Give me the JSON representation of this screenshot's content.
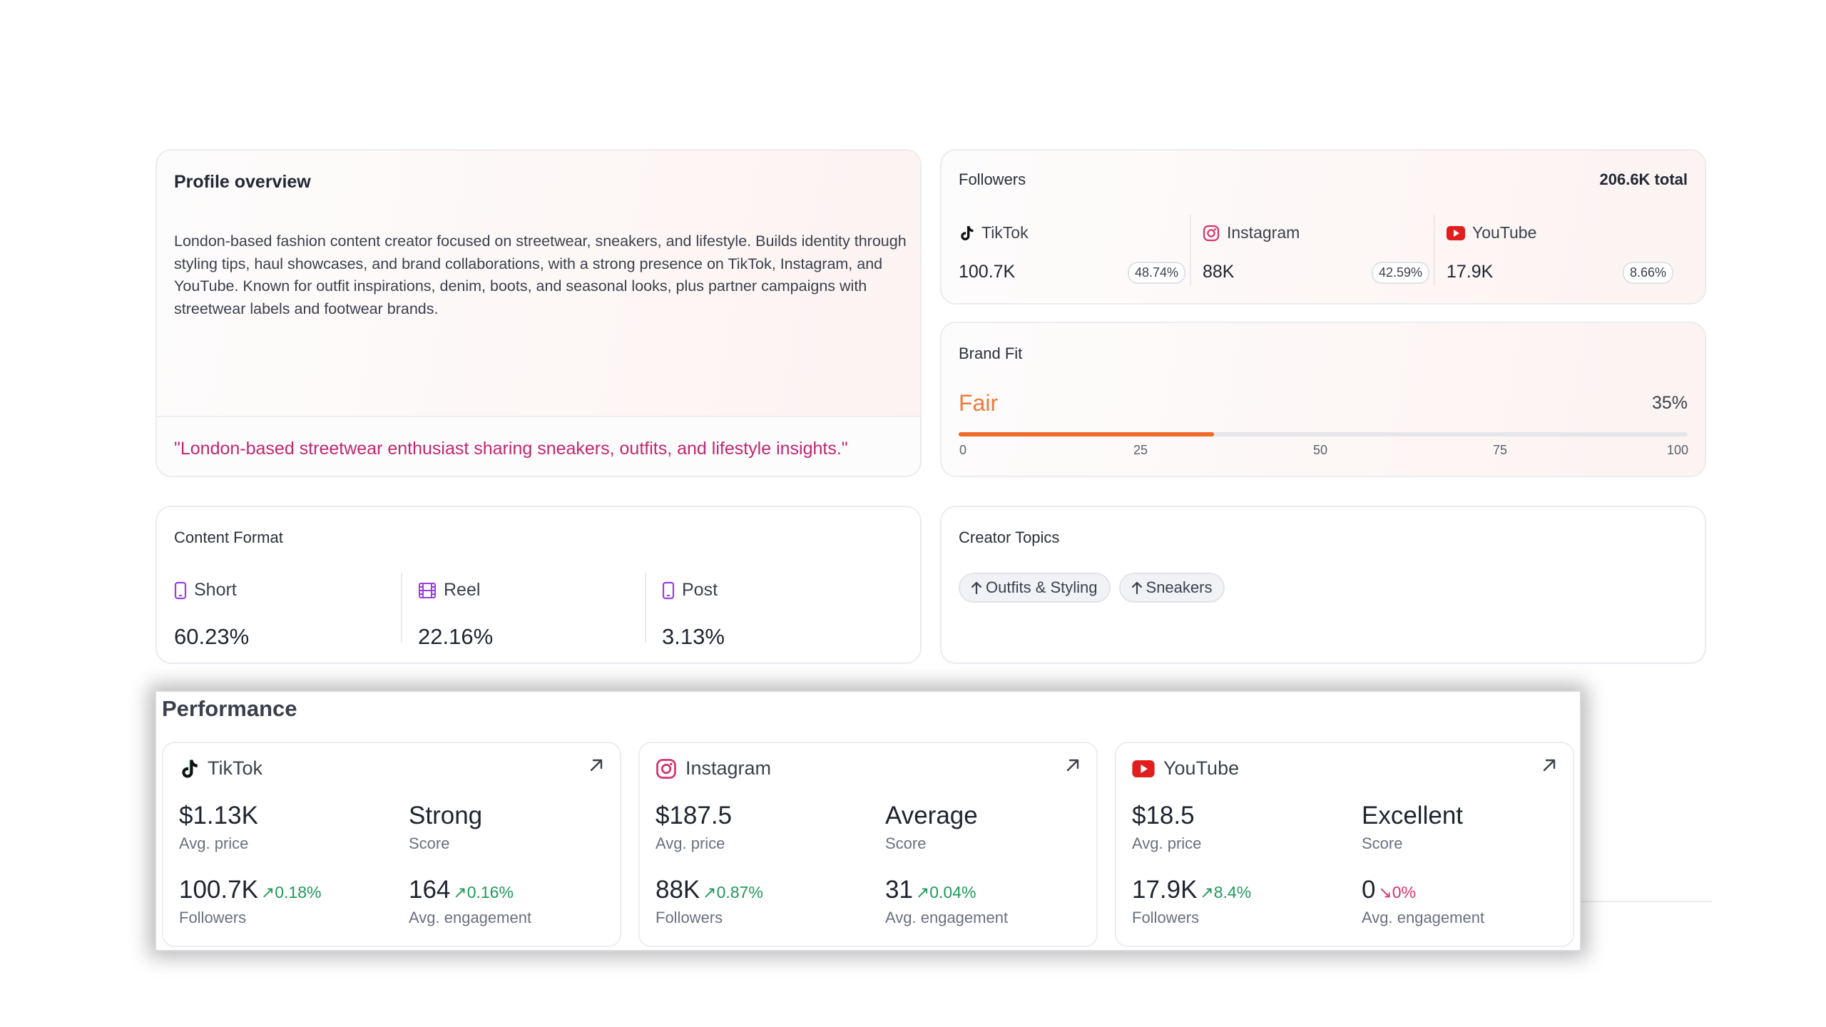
{
  "profile": {
    "title": "Profile overview",
    "bio": "London-based fashion content creator focused on streetwear, sneakers, and lifestyle. Builds identity through styling tips, haul showcases, and brand collaborations, with a strong presence on TikTok, Instagram, and YouTube. Known for outfit inspirations, denim, boots, and seasonal looks, plus partner campaigns with streetwear labels and footwear brands.",
    "quote": "\"London-based streetwear enthusiast sharing sneakers, outfits, and lifestyle insights.\""
  },
  "followers": {
    "title": "Followers",
    "total": "206.6K total",
    "platforms": [
      {
        "name": "TikTok",
        "icon": "tiktok-icon",
        "value": "100.7K",
        "pct": "48.74%"
      },
      {
        "name": "Instagram",
        "icon": "instagram-icon",
        "value": "88K",
        "pct": "42.59%"
      },
      {
        "name": "YouTube",
        "icon": "youtube-icon",
        "value": "17.9K",
        "pct": "8.66%"
      }
    ]
  },
  "brand_fit": {
    "title": "Brand Fit",
    "level": "Fair",
    "percent_label": "35%",
    "percent": 35,
    "ticks": [
      "0",
      "25",
      "50",
      "75",
      "100"
    ],
    "accent": "#f07a3a"
  },
  "content_format": {
    "title": "Content Format",
    "items": [
      {
        "name": "Short",
        "icon": "phone-icon",
        "value": "60.23%"
      },
      {
        "name": "Reel",
        "icon": "film-icon",
        "value": "22.16%"
      },
      {
        "name": "Post",
        "icon": "phone-icon",
        "value": "3.13%"
      }
    ]
  },
  "creator_topics": {
    "title": "Creator Topics",
    "topics": [
      "Outfits & Styling",
      "Sneakers"
    ]
  },
  "performance": {
    "title": "Performance",
    "cards": [
      {
        "platform": "TikTok",
        "icon": "tiktok-icon",
        "price": "$1.13K",
        "price_label": "Avg. price",
        "score": "Strong",
        "score_label": "Score",
        "followers": "100.7K",
        "followers_delta": "0.18%",
        "followers_label": "Followers",
        "engagement": "164",
        "engagement_delta": "0.16%",
        "engagement_label": "Avg. engagement"
      },
      {
        "platform": "Instagram",
        "icon": "instagram-icon",
        "price": "$187.5",
        "price_label": "Avg. price",
        "score": "Average",
        "score_label": "Score",
        "followers": "88K",
        "followers_delta": "0.87%",
        "followers_label": "Followers",
        "engagement": "31",
        "engagement_delta": "0.04%",
        "engagement_label": "Avg. engagement"
      },
      {
        "platform": "YouTube",
        "icon": "youtube-icon",
        "price": "$18.5",
        "price_label": "Avg. price",
        "score": "Excellent",
        "score_label": "Score",
        "followers": "17.9K",
        "followers_delta": "8.4%",
        "followers_label": "Followers",
        "engagement": "0",
        "engagement_delta": "0%",
        "engagement_label": "Avg. engagement"
      }
    ],
    "colors": {
      "up": "#1f9a5a",
      "down": "#d6336c",
      "average": "#e8781e"
    }
  }
}
